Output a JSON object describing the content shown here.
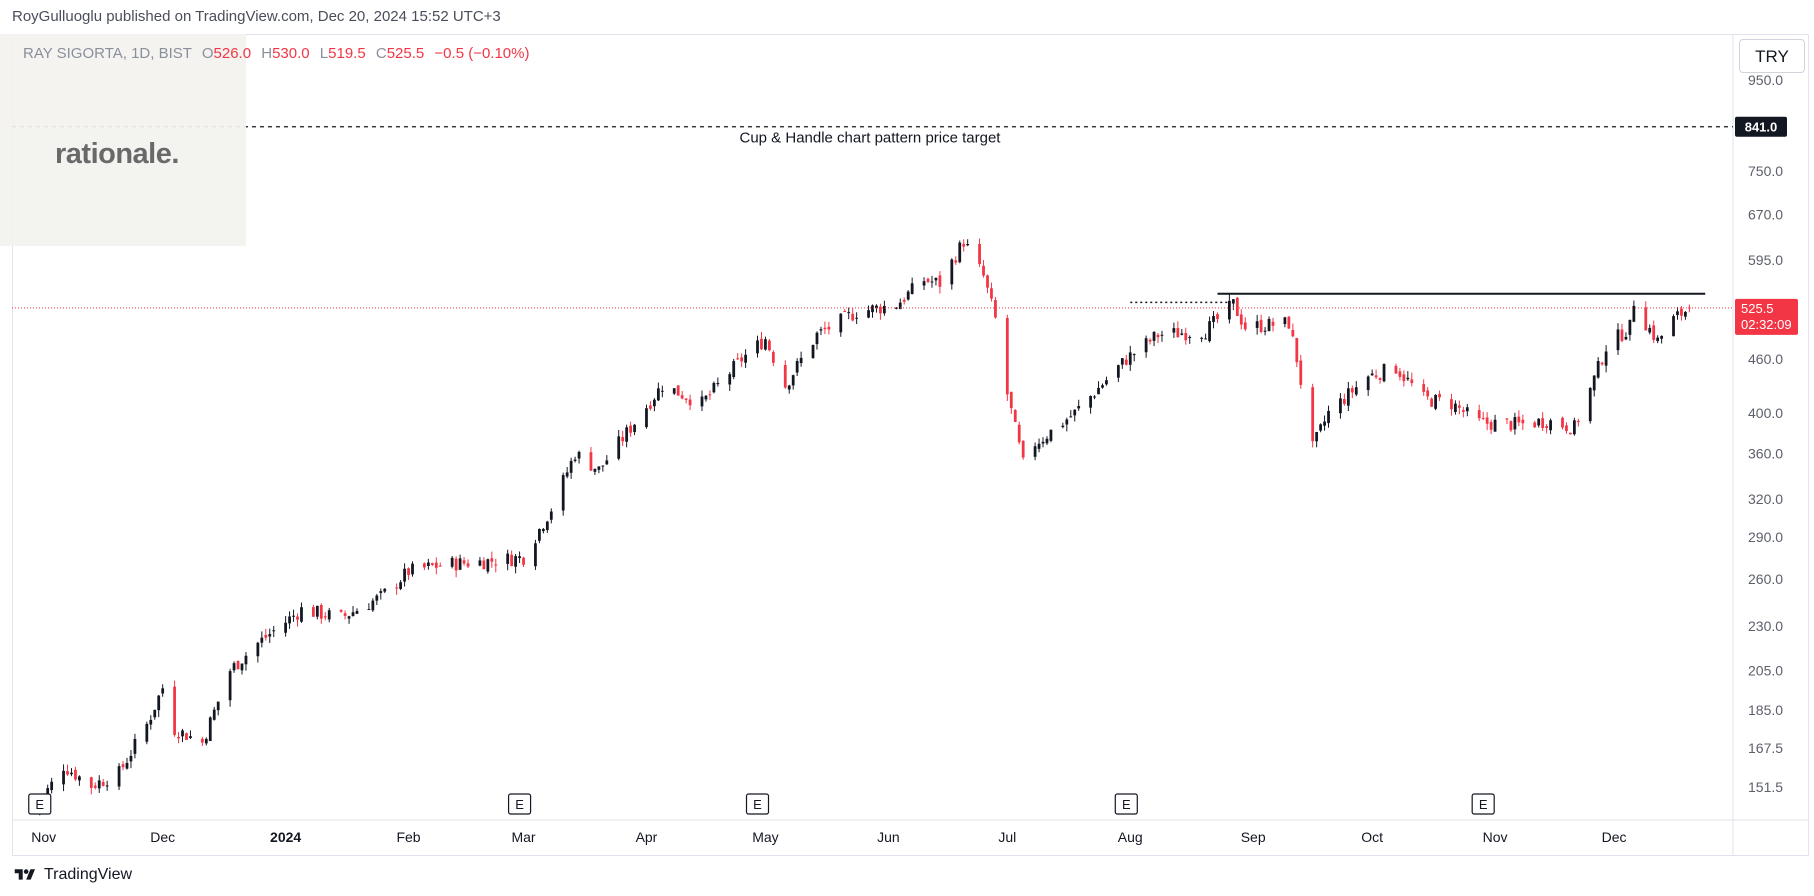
{
  "header": {
    "published_text": "RoyGulluoglu published on TradingView.com, Dec 20, 2024 15:52 UTC+3"
  },
  "legend": {
    "symbol": "RAY SIGORTA, 1D, BIST",
    "open_label": "O",
    "open": "526.0",
    "high_label": "H",
    "high": "530.0",
    "low_label": "L",
    "low": "519.5",
    "close_label": "C",
    "close": "525.5",
    "change": "−0.5 (−0.10%)"
  },
  "watermark_logo": "rationale.",
  "currency_button": "TRY",
  "footer": {
    "brand": "TradingView"
  },
  "colors": {
    "up": "#131722",
    "down": "#f23645",
    "accent": "#f23645"
  },
  "chart_data": {
    "type": "candlestick",
    "symbol": "RAY SIGORTA",
    "interval": "1D",
    "exchange": "BIST",
    "currency": "TRY",
    "y_scale": "log",
    "ylim": [
      139,
      1070
    ],
    "y_ticks": [
      950.0,
      750.0,
      670.0,
      595.0,
      460.0,
      400.0,
      360.0,
      320.0,
      290.0,
      260.0,
      230.0,
      205.0,
      185.0,
      167.5,
      151.5
    ],
    "y_tick_labels": [
      "950.0",
      "750.0",
      "670.0",
      "595.0",
      "460.0",
      "400.0",
      "360.0",
      "320.0",
      "290.0",
      "260.0",
      "230.0",
      "205.0",
      "185.0",
      "167.5",
      "151.5"
    ],
    "x_range": [
      "2023-10-24",
      "2024-12-31"
    ],
    "x_ticks": [
      {
        "date": "2023-11-01",
        "label": "Nov",
        "bold": false
      },
      {
        "date": "2023-12-01",
        "label": "Dec",
        "bold": false
      },
      {
        "date": "2024-01-01",
        "label": "2024",
        "bold": true
      },
      {
        "date": "2024-02-01",
        "label": "Feb",
        "bold": false
      },
      {
        "date": "2024-03-01",
        "label": "Mar",
        "bold": false
      },
      {
        "date": "2024-04-01",
        "label": "Apr",
        "bold": false
      },
      {
        "date": "2024-05-01",
        "label": "May",
        "bold": false
      },
      {
        "date": "2024-06-01",
        "label": "Jun",
        "bold": false
      },
      {
        "date": "2024-07-01",
        "label": "Jul",
        "bold": false
      },
      {
        "date": "2024-08-01",
        "label": "Aug",
        "bold": false
      },
      {
        "date": "2024-09-01",
        "label": "Sep",
        "bold": false
      },
      {
        "date": "2024-10-01",
        "label": "Oct",
        "bold": false
      },
      {
        "date": "2024-11-01",
        "label": "Nov",
        "bold": false
      },
      {
        "date": "2024-12-01",
        "label": "Dec",
        "bold": false
      }
    ],
    "anchors": [
      {
        "date": "2023-10-30",
        "close": 143
      },
      {
        "date": "2023-11-06",
        "close": 160
      },
      {
        "date": "2023-11-13",
        "close": 152
      },
      {
        "date": "2023-11-20",
        "close": 157
      },
      {
        "date": "2023-11-27",
        "close": 178
      },
      {
        "date": "2023-12-01",
        "close": 196
      },
      {
        "date": "2023-12-04",
        "close": 176
      },
      {
        "date": "2023-12-11",
        "close": 170
      },
      {
        "date": "2023-12-18",
        "close": 205
      },
      {
        "date": "2023-12-25",
        "close": 220
      },
      {
        "date": "2024-01-05",
        "close": 240
      },
      {
        "date": "2024-01-15",
        "close": 235
      },
      {
        "date": "2024-01-25",
        "close": 248
      },
      {
        "date": "2024-02-01",
        "close": 265
      },
      {
        "date": "2024-02-10",
        "close": 270
      },
      {
        "date": "2024-02-20",
        "close": 272
      },
      {
        "date": "2024-03-01",
        "close": 275
      },
      {
        "date": "2024-03-08",
        "close": 312
      },
      {
        "date": "2024-03-14",
        "close": 360
      },
      {
        "date": "2024-03-20",
        "close": 345
      },
      {
        "date": "2024-03-28",
        "close": 385
      },
      {
        "date": "2024-04-05",
        "close": 430
      },
      {
        "date": "2024-04-15",
        "close": 410
      },
      {
        "date": "2024-04-25",
        "close": 460
      },
      {
        "date": "2024-05-01",
        "close": 485
      },
      {
        "date": "2024-05-06",
        "close": 430
      },
      {
        "date": "2024-05-14",
        "close": 490
      },
      {
        "date": "2024-05-24",
        "close": 520
      },
      {
        "date": "2024-06-03",
        "close": 530
      },
      {
        "date": "2024-06-10",
        "close": 565
      },
      {
        "date": "2024-06-14",
        "close": 560
      },
      {
        "date": "2024-06-20",
        "close": 625
      },
      {
        "date": "2024-06-25",
        "close": 570
      },
      {
        "date": "2024-06-28",
        "close": 510
      },
      {
        "date": "2024-07-01",
        "close": 420
      },
      {
        "date": "2024-07-05",
        "close": 350
      },
      {
        "date": "2024-07-08",
        "close": 370
      },
      {
        "date": "2024-07-10",
        "close": 375
      },
      {
        "date": "2024-07-18",
        "close": 400
      },
      {
        "date": "2024-07-31",
        "close": 460
      },
      {
        "date": "2024-08-08",
        "close": 490
      },
      {
        "date": "2024-08-20",
        "close": 495
      },
      {
        "date": "2024-08-27",
        "close": 530
      },
      {
        "date": "2024-08-30",
        "close": 500
      },
      {
        "date": "2024-09-10",
        "close": 505
      },
      {
        "date": "2024-09-12",
        "close": 460
      },
      {
        "date": "2024-09-16",
        "close": 365
      },
      {
        "date": "2024-09-20",
        "close": 400
      },
      {
        "date": "2024-09-30",
        "close": 440
      },
      {
        "date": "2024-10-07",
        "close": 450
      },
      {
        "date": "2024-10-14",
        "close": 415
      },
      {
        "date": "2024-10-21",
        "close": 410
      },
      {
        "date": "2024-10-28",
        "close": 390
      },
      {
        "date": "2024-11-07",
        "close": 388
      },
      {
        "date": "2024-11-14",
        "close": 392
      },
      {
        "date": "2024-11-21",
        "close": 385
      },
      {
        "date": "2024-11-25",
        "close": 425
      },
      {
        "date": "2024-11-29",
        "close": 475
      },
      {
        "date": "2024-12-05",
        "close": 500
      },
      {
        "date": "2024-12-06",
        "close": 535
      },
      {
        "date": "2024-12-09",
        "close": 505
      },
      {
        "date": "2024-12-12",
        "close": 482
      },
      {
        "date": "2024-12-16",
        "close": 510
      },
      {
        "date": "2024-12-20",
        "close": 525.5
      }
    ],
    "current_price": 525.5,
    "current_price_label": "525.5",
    "countdown_label": "02:32:09",
    "target_line": {
      "price": 841.0,
      "label": "841.0",
      "annotation": "Cup & Handle chart pattern price target"
    },
    "resistance_line": {
      "price": 545,
      "from": "2024-08-23",
      "to": "2024-12-24"
    },
    "dotted_line": {
      "price": 533,
      "from": "2024-08-01",
      "to": "2024-08-26"
    },
    "earnings_markers": [
      {
        "date": "2023-10-31",
        "label": "E"
      },
      {
        "date": "2024-02-29",
        "label": "E"
      },
      {
        "date": "2024-04-29",
        "label": "E"
      },
      {
        "date": "2024-07-31",
        "label": "E"
      },
      {
        "date": "2024-10-29",
        "label": "E"
      }
    ]
  }
}
